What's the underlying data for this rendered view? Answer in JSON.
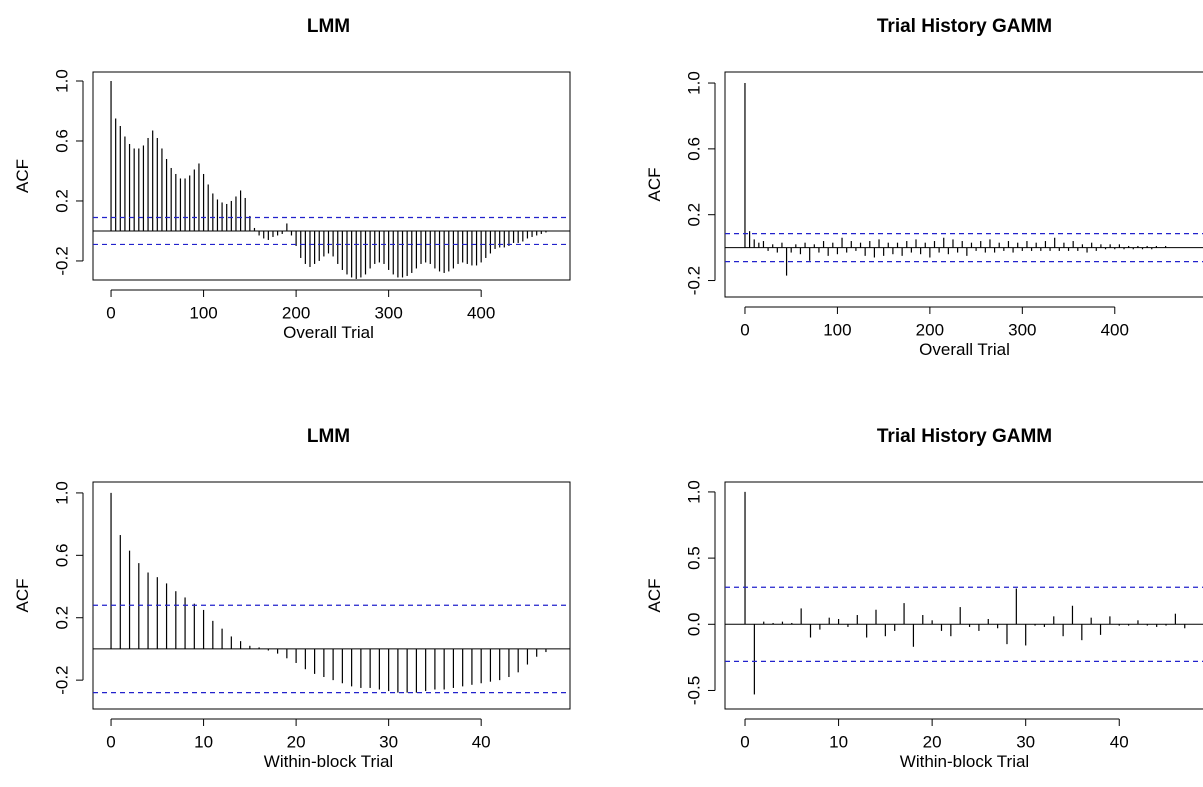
{
  "chart_data": [
    {
      "type": "acf",
      "title": "LMM",
      "x_label": "Overall Trial",
      "y_label": "ACF",
      "x": [
        0,
        5,
        10,
        15,
        20,
        25,
        30,
        35,
        40,
        45,
        50,
        55,
        60,
        65,
        70,
        75,
        80,
        85,
        90,
        95,
        100,
        105,
        110,
        115,
        120,
        125,
        130,
        135,
        140,
        145,
        150,
        155,
        160,
        165,
        170,
        175,
        180,
        185,
        190,
        195,
        200,
        205,
        210,
        215,
        220,
        225,
        230,
        235,
        240,
        245,
        250,
        255,
        260,
        265,
        270,
        275,
        280,
        285,
        290,
        295,
        300,
        305,
        310,
        315,
        320,
        325,
        330,
        335,
        340,
        345,
        350,
        355,
        360,
        365,
        370,
        375,
        380,
        385,
        390,
        395,
        400,
        405,
        410,
        415,
        420,
        425,
        430,
        435,
        440,
        445,
        450,
        455,
        460,
        465,
        470,
        475,
        480
      ],
      "values": [
        1.0,
        0.75,
        0.7,
        0.63,
        0.58,
        0.55,
        0.55,
        0.57,
        0.62,
        0.67,
        0.62,
        0.55,
        0.48,
        0.42,
        0.38,
        0.35,
        0.35,
        0.37,
        0.41,
        0.45,
        0.38,
        0.31,
        0.25,
        0.21,
        0.19,
        0.18,
        0.2,
        0.23,
        0.27,
        0.22,
        0.1,
        0.02,
        -0.03,
        -0.05,
        -0.06,
        -0.04,
        -0.03,
        -0.02,
        0.05,
        -0.03,
        -0.1,
        -0.18,
        -0.22,
        -0.24,
        -0.22,
        -0.2,
        -0.17,
        -0.15,
        -0.17,
        -0.22,
        -0.26,
        -0.29,
        -0.31,
        -0.32,
        -0.31,
        -0.29,
        -0.25,
        -0.22,
        -0.21,
        -0.22,
        -0.26,
        -0.29,
        -0.31,
        -0.31,
        -0.3,
        -0.28,
        -0.25,
        -0.22,
        -0.21,
        -0.22,
        -0.25,
        -0.27,
        -0.28,
        -0.27,
        -0.25,
        -0.22,
        -0.21,
        -0.22,
        -0.23,
        -0.23,
        -0.21,
        -0.18,
        -0.15,
        -0.12,
        -0.11,
        -0.11,
        -0.1,
        -0.08,
        -0.08,
        -0.07,
        -0.05,
        -0.04,
        -0.03,
        -0.02,
        -0.01,
        0.0,
        0.0
      ],
      "xlim": [
        -19.5,
        496
      ],
      "ylim": [
        -0.327,
        1.06
      ],
      "xticks": [
        0,
        100,
        200,
        300,
        400
      ],
      "yticks": [
        -0.2,
        0.2,
        0.6,
        {
          "value": 1,
          "label": "1.0"
        }
      ],
      "ci": [
        -0.09,
        0.09
      ],
      "color": "#000000",
      "ci_color": "#2222cc"
    },
    {
      "type": "acf",
      "title": "Trial History GAMM",
      "x_label": "Overall Trial",
      "y_label": "ACF",
      "x": [
        0,
        5,
        10,
        15,
        20,
        25,
        30,
        35,
        40,
        45,
        50,
        55,
        60,
        65,
        70,
        75,
        80,
        85,
        90,
        95,
        100,
        105,
        110,
        115,
        120,
        125,
        130,
        135,
        140,
        145,
        150,
        155,
        160,
        165,
        170,
        175,
        180,
        185,
        190,
        195,
        200,
        205,
        210,
        215,
        220,
        225,
        230,
        235,
        240,
        245,
        250,
        255,
        260,
        265,
        270,
        275,
        280,
        285,
        290,
        295,
        300,
        305,
        310,
        315,
        320,
        325,
        330,
        335,
        340,
        345,
        350,
        355,
        360,
        365,
        370,
        375,
        380,
        385,
        390,
        395,
        400,
        405,
        410,
        415,
        420,
        425,
        430,
        435,
        440,
        445,
        450,
        455,
        460,
        465,
        470,
        475,
        480
      ],
      "values": [
        1.0,
        0.1,
        0.05,
        0.03,
        0.04,
        -0.02,
        0.02,
        -0.03,
        0.03,
        -0.17,
        -0.03,
        0.02,
        -0.04,
        0.03,
        -0.08,
        0.02,
        -0.03,
        0.04,
        -0.05,
        0.03,
        -0.04,
        0.06,
        -0.03,
        0.04,
        -0.02,
        0.03,
        -0.05,
        0.04,
        -0.06,
        0.05,
        -0.05,
        0.03,
        -0.04,
        0.03,
        -0.05,
        0.04,
        -0.03,
        0.05,
        -0.04,
        0.03,
        -0.06,
        0.04,
        -0.03,
        0.06,
        -0.04,
        0.05,
        -0.03,
        0.04,
        -0.05,
        0.03,
        -0.02,
        0.04,
        -0.03,
        0.05,
        -0.03,
        0.03,
        -0.02,
        0.04,
        -0.03,
        0.03,
        -0.02,
        0.04,
        -0.02,
        0.03,
        -0.02,
        0.04,
        -0.02,
        0.06,
        -0.02,
        0.03,
        -0.02,
        0.04,
        -0.02,
        0.02,
        -0.03,
        0.03,
        -0.02,
        0.02,
        -0.01,
        0.02,
        -0.01,
        0.02,
        -0.01,
        0.01,
        -0.01,
        0.01,
        -0.01,
        0.01,
        -0.01,
        0.01,
        0.0,
        0.01,
        0.0,
        0.0,
        0.0,
        0.0,
        0.0
      ],
      "xlim": [
        -21.6,
        503
      ],
      "ylim": [
        -0.3,
        1.067
      ],
      "xticks": [
        0,
        100,
        200,
        300,
        400
      ],
      "yticks": [
        -0.2,
        0.2,
        0.6,
        {
          "value": 1,
          "label": "1.0"
        }
      ],
      "ci": [
        -0.085,
        0.085
      ],
      "color": "#000000",
      "ci_color": "#2222cc"
    },
    {
      "type": "acf",
      "title": "LMM",
      "x_label": "Within-block Trial",
      "y_label": "ACF",
      "x": [
        0,
        1,
        2,
        3,
        4,
        5,
        6,
        7,
        8,
        9,
        10,
        11,
        12,
        13,
        14,
        15,
        16,
        17,
        18,
        19,
        20,
        21,
        22,
        23,
        24,
        25,
        26,
        27,
        28,
        29,
        30,
        31,
        32,
        33,
        34,
        35,
        36,
        37,
        38,
        39,
        40,
        41,
        42,
        43,
        44,
        45,
        46,
        47
      ],
      "values": [
        1.0,
        0.73,
        0.63,
        0.55,
        0.49,
        0.46,
        0.42,
        0.37,
        0.33,
        0.29,
        0.25,
        0.18,
        0.13,
        0.08,
        0.05,
        0.02,
        0.01,
        -0.01,
        -0.03,
        -0.06,
        -0.09,
        -0.13,
        -0.16,
        -0.18,
        -0.2,
        -0.22,
        -0.24,
        -0.25,
        -0.25,
        -0.26,
        -0.27,
        -0.28,
        -0.28,
        -0.28,
        -0.27,
        -0.26,
        -0.26,
        -0.25,
        -0.24,
        -0.23,
        -0.22,
        -0.21,
        -0.2,
        -0.18,
        -0.15,
        -0.1,
        -0.05,
        -0.02
      ],
      "xlim": [
        -1.95,
        49.6
      ],
      "ylim": [
        -0.385,
        1.07
      ],
      "xticks": [
        0,
        10,
        20,
        30,
        40
      ],
      "yticks": [
        -0.2,
        0.2,
        0.6,
        {
          "value": 1,
          "label": "1.0"
        }
      ],
      "ci": [
        -0.28,
        0.28
      ],
      "color": "#000000",
      "ci_color": "#2222cc"
    },
    {
      "type": "acf",
      "title": "Trial History GAMM",
      "x_label": "Within-block Trial",
      "y_label": "ACF",
      "x": [
        0,
        1,
        2,
        3,
        4,
        5,
        6,
        7,
        8,
        9,
        10,
        11,
        12,
        13,
        14,
        15,
        16,
        17,
        18,
        19,
        20,
        21,
        22,
        23,
        24,
        25,
        26,
        27,
        28,
        29,
        30,
        31,
        32,
        33,
        34,
        35,
        36,
        37,
        38,
        39,
        40,
        41,
        42,
        43,
        44,
        45,
        46,
        47
      ],
      "values": [
        1.0,
        -0.53,
        0.02,
        0.01,
        0.02,
        0.01,
        0.12,
        -0.1,
        -0.04,
        0.05,
        0.04,
        -0.02,
        0.07,
        -0.1,
        0.11,
        -0.09,
        -0.05,
        0.16,
        -0.17,
        0.07,
        0.03,
        -0.05,
        -0.09,
        0.13,
        -0.02,
        -0.05,
        0.04,
        -0.03,
        -0.15,
        0.27,
        -0.16,
        -0.01,
        -0.02,
        0.06,
        -0.09,
        0.14,
        -0.12,
        0.05,
        -0.08,
        0.06,
        -0.01,
        -0.01,
        0.03,
        -0.01,
        -0.02,
        -0.01,
        0.08,
        -0.03
      ],
      "xlim": [
        -2.14,
        49.7
      ],
      "ylim": [
        -0.64,
        1.075
      ],
      "xticks": [
        0,
        10,
        20,
        30,
        40
      ],
      "yticks": [
        {
          "value": -0.5,
          "label": "-0.5"
        },
        {
          "value": 0,
          "label": "0.0"
        },
        0.5,
        {
          "value": 1,
          "label": "1.0"
        }
      ],
      "ci": [
        -0.28,
        0.28
      ],
      "color": "#000000",
      "ci_color": "#2222cc"
    }
  ]
}
